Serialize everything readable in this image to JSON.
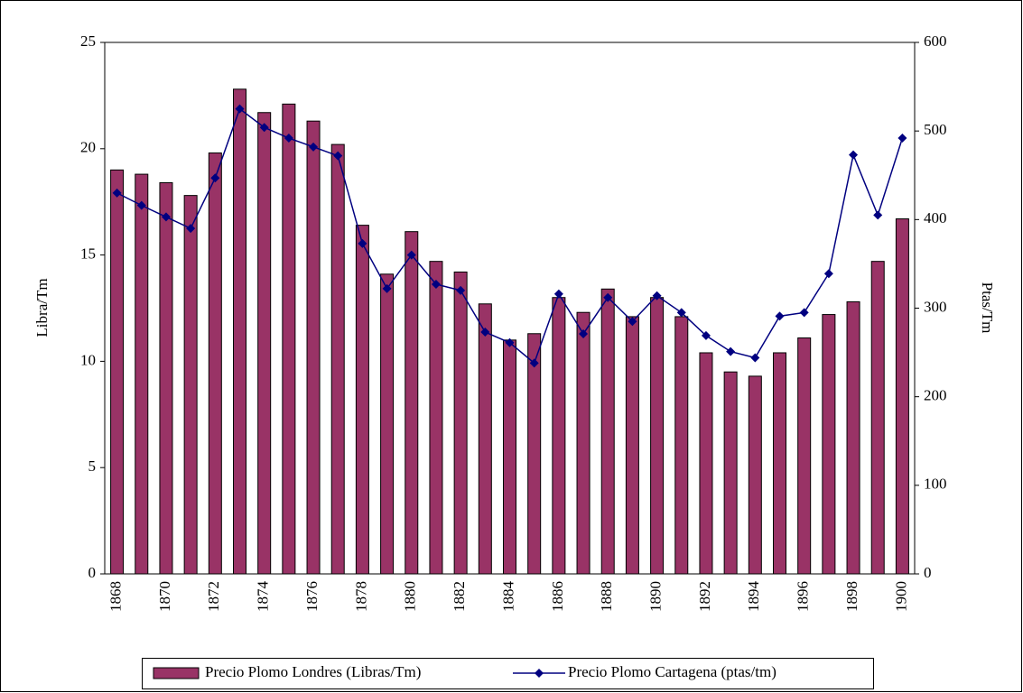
{
  "chart_data": {
    "type": "bar",
    "categories": [
      "1868",
      null,
      "1870",
      null,
      "1872",
      null,
      "1874",
      null,
      "1876",
      null,
      "1878",
      null,
      "1880",
      null,
      "1882",
      null,
      "1884",
      null,
      "1886",
      null,
      "1888",
      null,
      "1890",
      null,
      "1892",
      null,
      "1894",
      null,
      "1896",
      null,
      "1898",
      null,
      "1900"
    ],
    "series": [
      {
        "name": "Precio Plomo Londres (Libras/Tm)",
        "type": "bar",
        "color": "#993366",
        "values": [
          19.0,
          18.8,
          18.4,
          17.8,
          19.8,
          22.8,
          21.7,
          22.1,
          21.3,
          20.2,
          16.4,
          14.1,
          16.1,
          14.7,
          14.2,
          12.7,
          11.0,
          11.3,
          13.0,
          12.3,
          13.4,
          12.1,
          13.0,
          12.1,
          10.4,
          9.5,
          9.3,
          10.4,
          11.1,
          12.2,
          12.8,
          14.7,
          16.7
        ]
      },
      {
        "name": "Precio Plomo Cartagena (ptas/tm)",
        "type": "line",
        "axis": "y2",
        "color": "#000080",
        "values": [
          430,
          416,
          403,
          390,
          447,
          525,
          504,
          492,
          482,
          472,
          373,
          322,
          360,
          327,
          320,
          273,
          261,
          238,
          316,
          271,
          312,
          285,
          314,
          295,
          269,
          251,
          244,
          291,
          295,
          339,
          473,
          405,
          492
        ]
      }
    ],
    "y_label": "Libra/Tm",
    "y2_label": "Ptas/Tm",
    "ylim": [
      0,
      25
    ],
    "yticks": [
      0,
      5,
      10,
      15,
      20,
      25
    ],
    "y2lim": [
      0,
      600
    ],
    "y2ticks": [
      0,
      100,
      200,
      300,
      400,
      500,
      600
    ],
    "grid": false,
    "legend": "bottom"
  }
}
